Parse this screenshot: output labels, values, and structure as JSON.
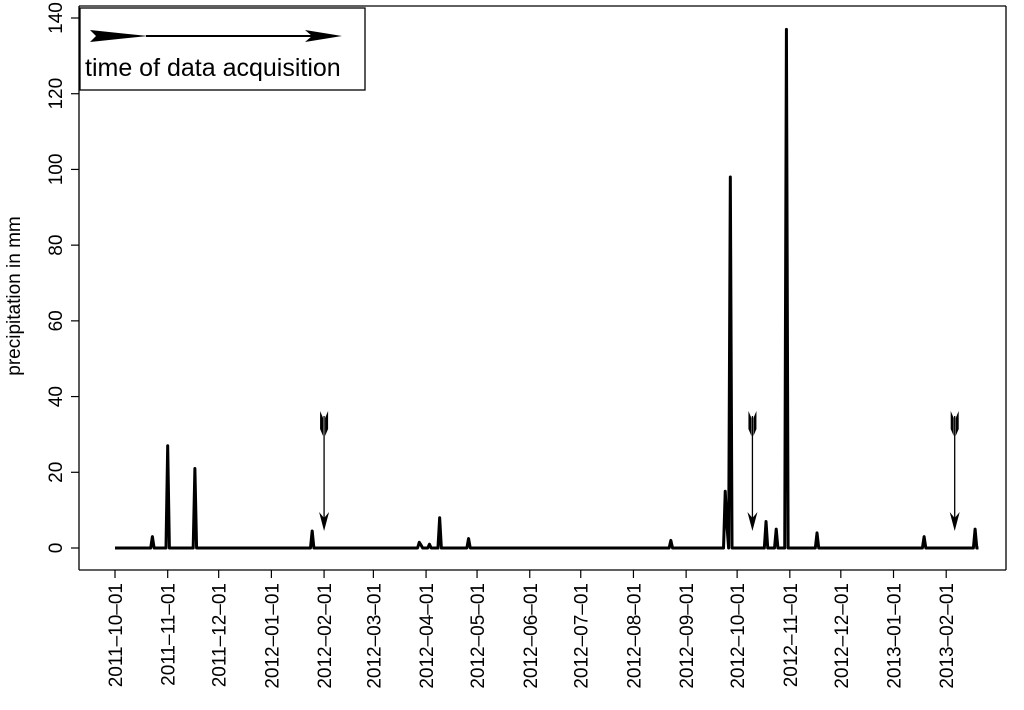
{
  "chart_data": {
    "type": "line",
    "title": "",
    "xlabel": "",
    "ylabel": "precipitation in mm",
    "ylim": [
      0,
      140
    ],
    "xlim": [
      "2011-10-01",
      "2013-02-25"
    ],
    "y_ticks": [
      0,
      20,
      40,
      60,
      80,
      100,
      120,
      140
    ],
    "x_ticks": [
      "2011-10-01",
      "2011-11-01",
      "2011-12-01",
      "2012-01-01",
      "2012-02-01",
      "2012-03-01",
      "2012-04-01",
      "2012-05-01",
      "2012-06-01",
      "2012-07-01",
      "2012-08-01",
      "2012-09-01",
      "2012-10-01",
      "2012-11-01",
      "2012-12-01",
      "2013-01-01",
      "2013-02-01"
    ],
    "grid": false,
    "legend": {
      "position": "top-left",
      "label": "time of data acquisition"
    },
    "series": [
      {
        "values": [
          [
            "2011-10-01",
            0
          ],
          [
            "2011-10-22",
            0
          ],
          [
            "2011-10-23",
            3
          ],
          [
            "2011-10-24",
            0
          ],
          [
            "2011-10-31",
            0
          ],
          [
            "2011-11-01",
            27
          ],
          [
            "2011-11-02",
            0
          ],
          [
            "2011-11-16",
            0
          ],
          [
            "2011-11-17",
            21
          ],
          [
            "2011-11-18",
            0
          ],
          [
            "2012-01-24",
            0
          ],
          [
            "2012-01-25",
            4.5
          ],
          [
            "2012-01-26",
            0
          ],
          [
            "2012-03-27",
            0
          ],
          [
            "2012-03-28",
            1.5
          ],
          [
            "2012-03-29",
            0.8
          ],
          [
            "2012-03-30",
            0
          ],
          [
            "2012-04-02",
            0
          ],
          [
            "2012-04-03",
            1
          ],
          [
            "2012-04-04",
            0
          ],
          [
            "2012-04-08",
            0
          ],
          [
            "2012-04-09",
            8
          ],
          [
            "2012-04-10",
            0
          ],
          [
            "2012-04-25",
            0
          ],
          [
            "2012-04-26",
            2.5
          ],
          [
            "2012-04-27",
            0
          ],
          [
            "2012-08-22",
            0
          ],
          [
            "2012-08-23",
            2
          ],
          [
            "2012-08-24",
            0
          ],
          [
            "2012-09-23",
            0
          ],
          [
            "2012-09-24",
            15
          ],
          [
            "2012-09-25",
            6
          ],
          [
            "2012-09-26",
            0
          ],
          [
            "2012-09-27",
            98
          ],
          [
            "2012-09-28",
            0
          ],
          [
            "2012-10-17",
            0
          ],
          [
            "2012-10-18",
            7
          ],
          [
            "2012-10-19",
            0
          ],
          [
            "2012-10-23",
            0
          ],
          [
            "2012-10-24",
            5
          ],
          [
            "2012-10-25",
            0
          ],
          [
            "2012-10-29",
            0
          ],
          [
            "2012-10-30",
            137
          ],
          [
            "2012-10-31",
            0
          ],
          [
            "2012-11-16",
            0
          ],
          [
            "2012-11-17",
            4
          ],
          [
            "2012-11-18",
            0
          ],
          [
            "2013-01-18",
            0
          ],
          [
            "2013-01-19",
            3
          ],
          [
            "2013-01-20",
            0
          ],
          [
            "2013-02-17",
            0
          ],
          [
            "2013-02-18",
            5
          ],
          [
            "2013-02-19",
            0
          ],
          [
            "2013-02-20",
            0
          ]
        ]
      }
    ],
    "acquisition_dates": [
      "2012-02-01",
      "2012-10-10",
      "2013-02-06"
    ]
  }
}
